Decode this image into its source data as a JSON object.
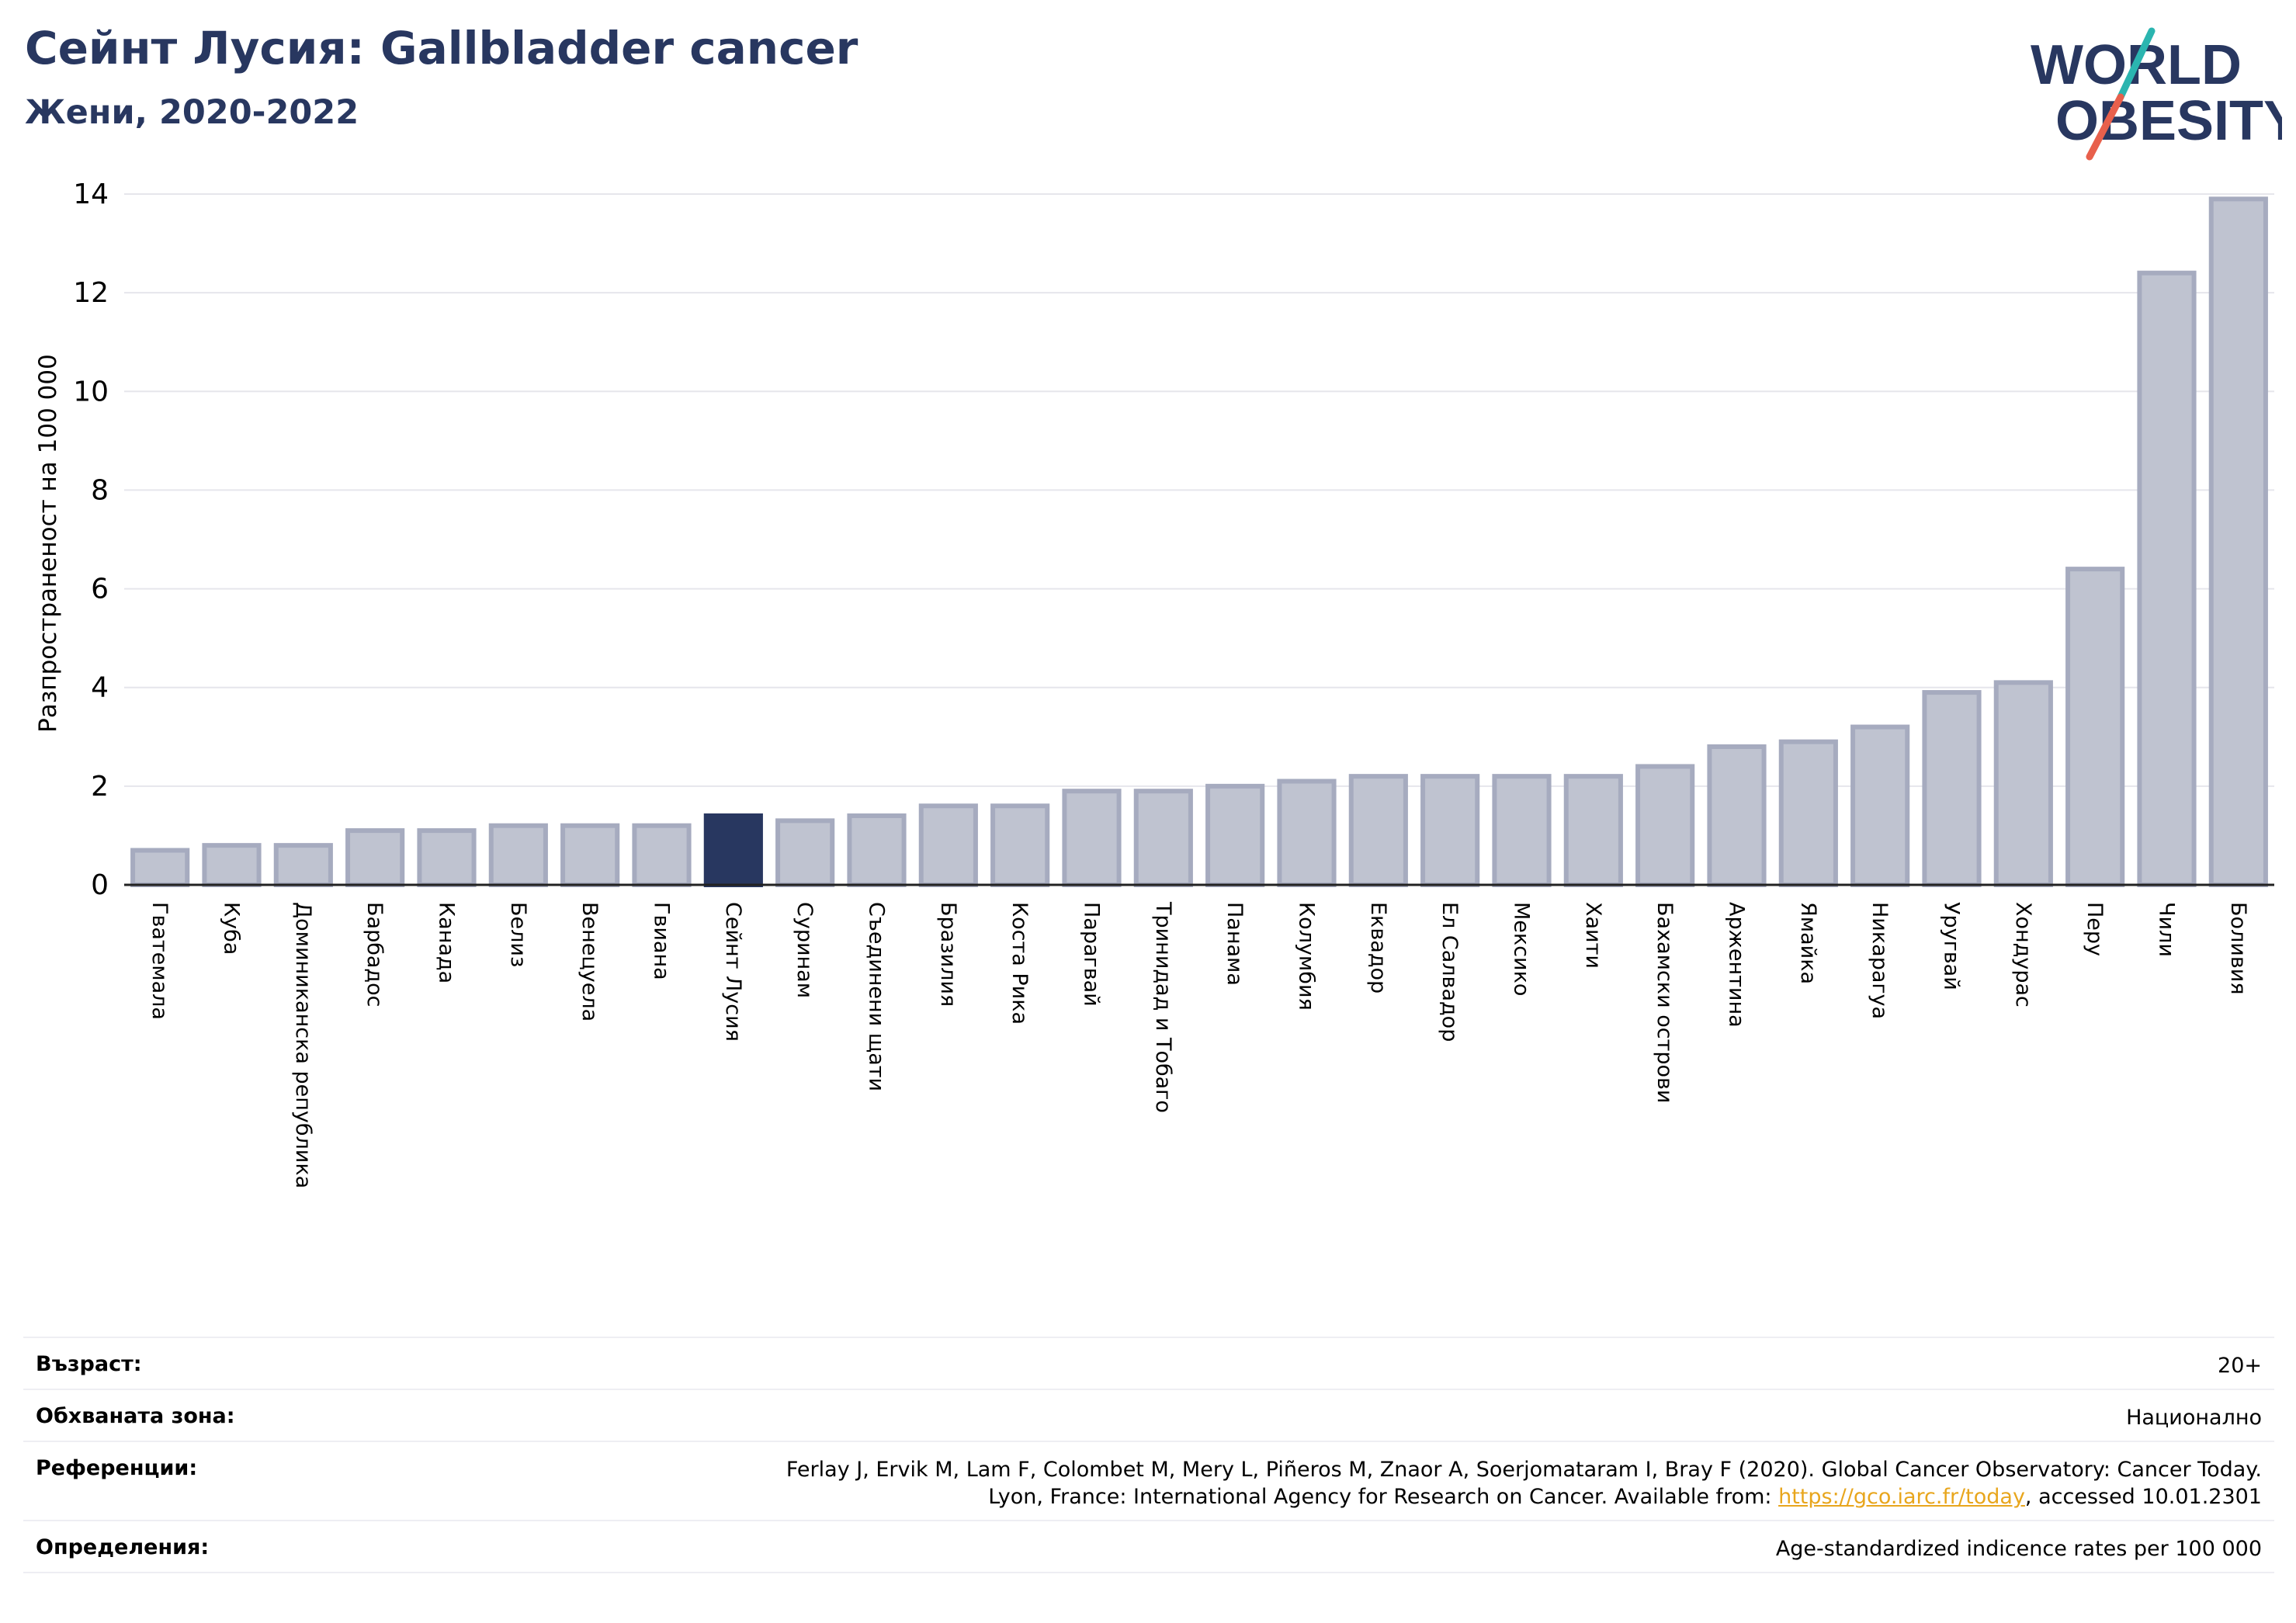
{
  "header": {
    "title": "Сейнт Лусия: Gallbladder cancer",
    "subtitle": "Жени, 2020-2022"
  },
  "logo": {
    "line1": "WORLD",
    "line2": "OBESITY",
    "colors": {
      "text": "#283760",
      "slash_top": "#2bb5b0",
      "slash_bottom": "#e8604c"
    }
  },
  "chart_data": {
    "type": "bar",
    "title": "Сейнт Лусия: Gallbladder cancer",
    "subtitle": "Жени, 2020-2022",
    "ylabel": "Разпространеност  на 100 000",
    "xlabel": "",
    "ylim": [
      0,
      14
    ],
    "yticks": [
      0,
      2,
      4,
      6,
      8,
      10,
      12,
      14
    ],
    "grid": true,
    "highlight": "Сейнт Лусия",
    "colors": {
      "bar": "#bfc3d0",
      "bar_edge": "#a6abbf",
      "highlight": "#283760",
      "grid": "#e6e6ec"
    },
    "categories": [
      "Гватемала",
      "Куба",
      "Доминиканска република",
      "Барбадос",
      "Канада",
      "Белиз",
      "Венецуела",
      "Гвиана",
      "Сейнт Лусия",
      "Суринам",
      "Съединени щати",
      "Бразилия",
      "Коста Рика",
      "Парагвай",
      "Тринидад и Тобаго",
      "Панама",
      "Колумбия",
      "Еквадор",
      "Ел Салвадор",
      "Мексико",
      "Хаити",
      "Бахамски острови",
      "Аржентина",
      "Ямайка",
      "Никарагуа",
      "Уругвай",
      "Хондурас",
      "Перу",
      "Чили",
      "Боливия"
    ],
    "values": [
      0.7,
      0.8,
      0.8,
      1.1,
      1.1,
      1.2,
      1.2,
      1.2,
      1.4,
      1.3,
      1.4,
      1.6,
      1.6,
      1.9,
      1.9,
      2.0,
      2.1,
      2.2,
      2.2,
      2.2,
      2.2,
      2.4,
      2.8,
      2.9,
      3.2,
      3.9,
      4.1,
      6.4,
      12.4,
      13.9
    ]
  },
  "meta": {
    "age_label": "Възраст:",
    "age_value": "20+",
    "coverage_label": "Обхваната зона:",
    "coverage_value": "Национално",
    "references_label": "Референции:",
    "references_line1": "Ferlay J, Ervik M, Lam F, Colombet M, Mery L, Piñeros M, Znaor A, Soerjomataram I, Bray F (2020). Global Cancer Observatory: Cancer Today.",
    "references_line2_pre": "Lyon, France: International Agency for Research on Cancer. Available from: ",
    "references_link": "https://gco.iarc.fr/today",
    "references_line2_post": ", accessed 10.01.2301",
    "definitions_label": "Определения:",
    "definitions_value": "Age-standardized indicence rates per 100 000"
  }
}
